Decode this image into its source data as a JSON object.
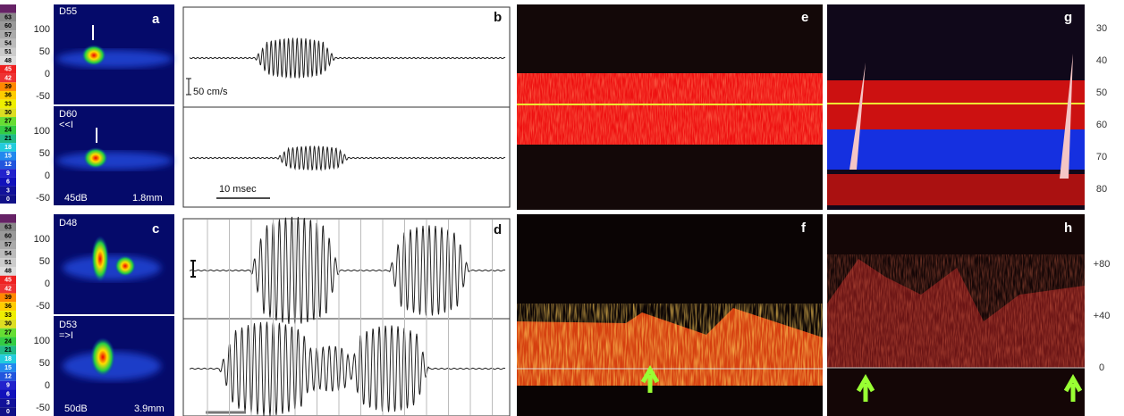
{
  "colorbar": {
    "labels": [
      63,
      60,
      57,
      54,
      51,
      48,
      45,
      42,
      39,
      36,
      33,
      30,
      27,
      24,
      21,
      18,
      15,
      12,
      9,
      6,
      3,
      0
    ]
  },
  "panel_a": {
    "letter": "a",
    "yticks": [
      100,
      50,
      0,
      -50
    ],
    "top_label": "D55",
    "bottom_label": "D60",
    "bottom_marker": "<<I",
    "gain": "45dB",
    "depth": "1.8mm"
  },
  "panel_b": {
    "letter": "b",
    "scale_label": "50 cm/s",
    "time_label": "10 msec"
  },
  "panel_c": {
    "letter": "c",
    "yticks": [
      100,
      50,
      0,
      -50
    ],
    "top_label": "D48",
    "bottom_label": "D53",
    "bottom_marker": "=>I",
    "gain": "50dB",
    "depth": "3.9mm"
  },
  "panel_d": {
    "letter": "d"
  },
  "panel_e": {
    "letter": "e"
  },
  "panel_f": {
    "letter": "f"
  },
  "panel_g": {
    "letter": "g",
    "yticks": [
      30,
      40,
      50,
      60,
      70,
      80
    ]
  },
  "panel_h": {
    "letter": "h",
    "yticks": [
      "+80",
      "+40",
      "0"
    ]
  }
}
